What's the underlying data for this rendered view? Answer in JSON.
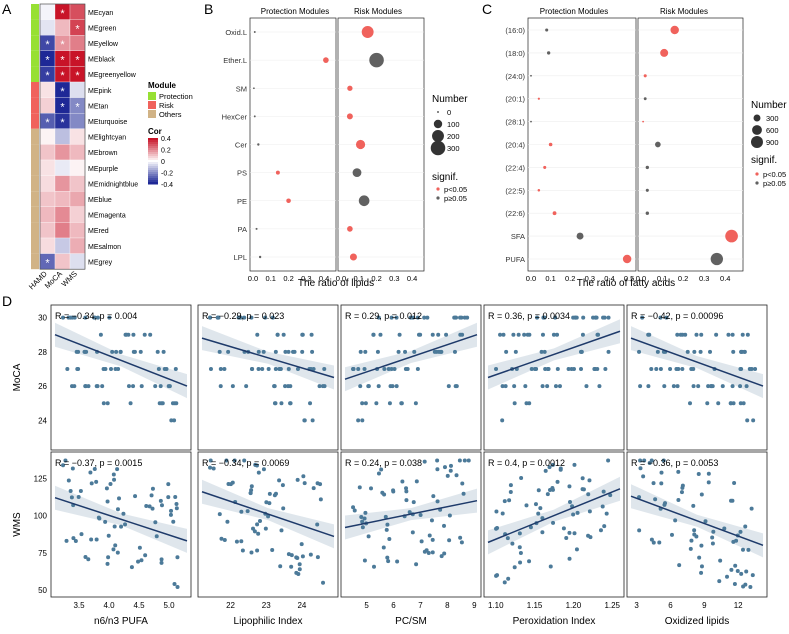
{
  "panel_labels": {
    "A": "A",
    "B": "B",
    "C": "C",
    "D": "D"
  },
  "colors": {
    "risk": "#F0625C",
    "ns": "#616161",
    "protection": "#97E033",
    "others": "#D1B386",
    "point": "#4C7A99",
    "line": "#1E3A6A",
    "band": "#C9D6E0"
  },
  "panelA": {
    "modules": [
      "MEcyan",
      "MEgreen",
      "MEyellow",
      "MEblack",
      "MEgreenyellow",
      "MEpink",
      "MEtan",
      "MEturquoise",
      "MElightcyan",
      "MEbrown",
      "MEpurple",
      "MEmidnightblue",
      "MEblue",
      "MEmagenta",
      "MEred",
      "MEsalmon",
      "MEgrey"
    ],
    "module_type": [
      "Protection",
      "Protection",
      "Protection",
      "Protection",
      "Protection",
      "Risk",
      "Risk",
      "Risk",
      "Others",
      "Others",
      "Others",
      "Others",
      "Others",
      "Others",
      "Others",
      "Others",
      "Others"
    ],
    "columns": [
      "HAMD",
      "MoCA",
      "WMS"
    ],
    "cor": [
      [
        -0.02,
        0.4,
        0.3
      ],
      [
        -0.05,
        0.12,
        0.32
      ],
      [
        -0.34,
        0.18,
        0.22
      ],
      [
        -0.4,
        0.42,
        0.42
      ],
      [
        -0.36,
        0.4,
        0.42
      ],
      [
        0.05,
        -0.4,
        -0.06
      ],
      [
        0.08,
        -0.4,
        -0.22
      ],
      [
        -0.3,
        -0.38,
        -0.22
      ],
      [
        0.02,
        -0.12,
        0.05
      ],
      [
        0.1,
        0.18,
        0.12
      ],
      [
        0.05,
        -0.04,
        0.02
      ],
      [
        0.06,
        0.18,
        0.1
      ],
      [
        0.1,
        0.12,
        0.15
      ],
      [
        0.12,
        0.2,
        0.08
      ],
      [
        0.1,
        0.22,
        0.12
      ],
      [
        0.06,
        -0.1,
        0.14
      ],
      [
        -0.28,
        0.1,
        -0.06
      ]
    ],
    "stars": [
      [
        false,
        true,
        false
      ],
      [
        false,
        false,
        true
      ],
      [
        true,
        true,
        false
      ],
      [
        true,
        true,
        true
      ],
      [
        true,
        true,
        true
      ],
      [
        false,
        true,
        false
      ],
      [
        false,
        true,
        true
      ],
      [
        true,
        true,
        false
      ],
      [
        false,
        false,
        false
      ],
      [
        false,
        false,
        false
      ],
      [
        false,
        false,
        false
      ],
      [
        false,
        false,
        false
      ],
      [
        false,
        false,
        false
      ],
      [
        false,
        false,
        false
      ],
      [
        false,
        false,
        false
      ],
      [
        false,
        false,
        false
      ],
      [
        true,
        false,
        false
      ]
    ],
    "star_symbol": "*",
    "legend_module_title": "Module",
    "legend_module_items": [
      "Protection",
      "Risk",
      "Others"
    ],
    "legend_cor_title": "Cor",
    "legend_cor_ticks": [
      "0.4",
      "0.2",
      "0",
      "-0.2",
      "-0.4"
    ]
  },
  "panelB": {
    "left_title": "Protection Modules",
    "right_title": "Risk Modules",
    "categories": [
      "Oxid.L",
      "Ether.L",
      "SM",
      "HexCer",
      "Cer",
      "PS",
      "PE",
      "PA",
      "LPL"
    ],
    "left_ratio": [
      0.01,
      0.41,
      0.005,
      0.01,
      0.03,
      0.14,
      0.2,
      0.02,
      0.04
    ],
    "left_number": [
      5,
      45,
      3,
      5,
      8,
      22,
      30,
      6,
      8
    ],
    "left_sig": [
      false,
      true,
      false,
      false,
      false,
      true,
      true,
      false,
      false
    ],
    "right_ratio": [
      0.15,
      0.2,
      0.05,
      0.05,
      0.11,
      0.09,
      0.13,
      0.05,
      0.07
    ],
    "right_number": [
      200,
      300,
      40,
      50,
      120,
      110,
      160,
      45,
      70
    ],
    "right_sig": [
      true,
      false,
      true,
      true,
      true,
      false,
      false,
      true,
      true
    ],
    "left_ticks": [
      "0.0",
      "0.1",
      "0.2",
      "0.3",
      "0.4"
    ],
    "right_ticks": [
      "0.0",
      "0.1",
      "0.2",
      "0.3",
      "0.4"
    ],
    "xlabel": "The ratio of lipids",
    "legend_number_title": "Number",
    "legend_number_items": [
      "0",
      "100",
      "200",
      "300"
    ],
    "legend_sig_title": "signif.",
    "legend_sig_items": [
      "p<0.05",
      "p≥0.05"
    ]
  },
  "panelC": {
    "left_title": "Protection Modules",
    "right_title": "Risk Modules",
    "categories": [
      "(16:0)",
      "(18:0)",
      "(24:0)",
      "(20:1)",
      "(28:1)",
      "(20:4)",
      "(22:4)",
      "(22:5)",
      "(22:6)",
      "SFA",
      "PUFA"
    ],
    "left_ratio": [
      0.08,
      0.09,
      0.0,
      0.04,
      0.0,
      0.1,
      0.07,
      0.04,
      0.12,
      0.25,
      0.49
    ],
    "left_number": [
      60,
      70,
      5,
      30,
      5,
      80,
      60,
      40,
      90,
      300,
      450
    ],
    "left_sig": [
      false,
      false,
      false,
      true,
      false,
      true,
      true,
      true,
      true,
      false,
      true
    ],
    "right_ratio": [
      0.16,
      0.11,
      0.02,
      0.02,
      0.01,
      0.08,
      0.03,
      0.03,
      0.03,
      0.43,
      0.36
    ],
    "right_number": [
      450,
      400,
      60,
      50,
      20,
      200,
      70,
      60,
      70,
      1000,
      950
    ],
    "right_sig": [
      true,
      true,
      true,
      false,
      true,
      false,
      false,
      false,
      false,
      true,
      false
    ],
    "left_ticks": [
      "0.0",
      "0.1",
      "0.2",
      "0.3",
      "0.4",
      "0.5"
    ],
    "right_ticks": [
      "0.0",
      "0.1",
      "0.2",
      "0.3",
      "0.4"
    ],
    "xlabel": "The ratio of fatty acids",
    "legend_number_title": "Number",
    "legend_number_items": [
      "300",
      "600",
      "900"
    ],
    "legend_sig_title": "signif.",
    "legend_sig_items": [
      "p<0.05",
      "p≥0.05"
    ]
  },
  "panelD": {
    "rows": [
      {
        "label": "MoCA",
        "ylim": [
          22.5,
          30.5
        ],
        "ticks": [
          "30",
          "28",
          "26",
          "24"
        ],
        "tick_values": [
          30,
          28,
          26,
          24
        ]
      },
      {
        "label": "WMS",
        "ylim": [
          48,
          140
        ],
        "ticks": [
          "125",
          "100",
          "75",
          "50"
        ],
        "tick_values": [
          125,
          100,
          75,
          50
        ]
      }
    ],
    "columns": [
      {
        "label": "n6/n3 PUFA",
        "xlim": [
          3.1,
          5.3
        ],
        "ticks": [
          "3.5",
          "4.0",
          "4.5",
          "5.0"
        ],
        "tick_values": [
          3.5,
          4.0,
          4.5,
          5.0
        ]
      },
      {
        "label": "Lipophilic Index",
        "xlim": [
          21.2,
          24.9
        ],
        "ticks": [
          "22",
          "23",
          "24"
        ],
        "tick_values": [
          22,
          23,
          24
        ]
      },
      {
        "label": "PC/SM",
        "xlim": [
          4.2,
          9.1
        ],
        "ticks": [
          "5",
          "6",
          "7",
          "8",
          "9"
        ],
        "tick_values": [
          5,
          6,
          7,
          8,
          9
        ]
      },
      {
        "label": "Peroxidation Index",
        "xlim": [
          1.09,
          1.26
        ],
        "ticks": [
          "1.10",
          "1.15",
          "1.20",
          "1.25"
        ],
        "tick_values": [
          1.1,
          1.15,
          1.2,
          1.25
        ]
      },
      {
        "label": "Oxidized lipids",
        "xlim": [
          2.5,
          14.2
        ],
        "ticks": [
          "3",
          "6",
          "9",
          "12"
        ],
        "tick_values": [
          3,
          6,
          9,
          12
        ]
      }
    ],
    "stats": [
      [
        "R = −0.34, p = 0.004",
        "R = −0.29, p = 0.023",
        "R = 0.29, p = 0.012",
        "R = 0.36, p = 0.0034",
        "R = −0.42, p = 0.00096"
      ],
      [
        "R = −0.37, p = 0.0015",
        "R = −0.34, p = 0.0069",
        "R = 0.24, p = 0.038",
        "R = 0.4, p = 0.0012",
        "R = −0.36, p = 0.0053"
      ]
    ],
    "fit": [
      [
        [
          3.1,
          29.0,
          5.3,
          26.0
        ],
        [
          21.2,
          28.8,
          24.9,
          26.5
        ],
        [
          4.2,
          26.4,
          9.1,
          29.0
        ],
        [
          1.09,
          26.5,
          1.26,
          29.2
        ],
        [
          2.5,
          28.8,
          14.2,
          26.0
        ]
      ],
      [
        [
          3.1,
          112,
          5.3,
          83
        ],
        [
          21.2,
          116,
          24.9,
          86
        ],
        [
          4.2,
          92,
          9.1,
          110
        ],
        [
          1.09,
          82,
          1.26,
          118
        ],
        [
          2.5,
          113,
          14.2,
          80
        ]
      ]
    ]
  }
}
